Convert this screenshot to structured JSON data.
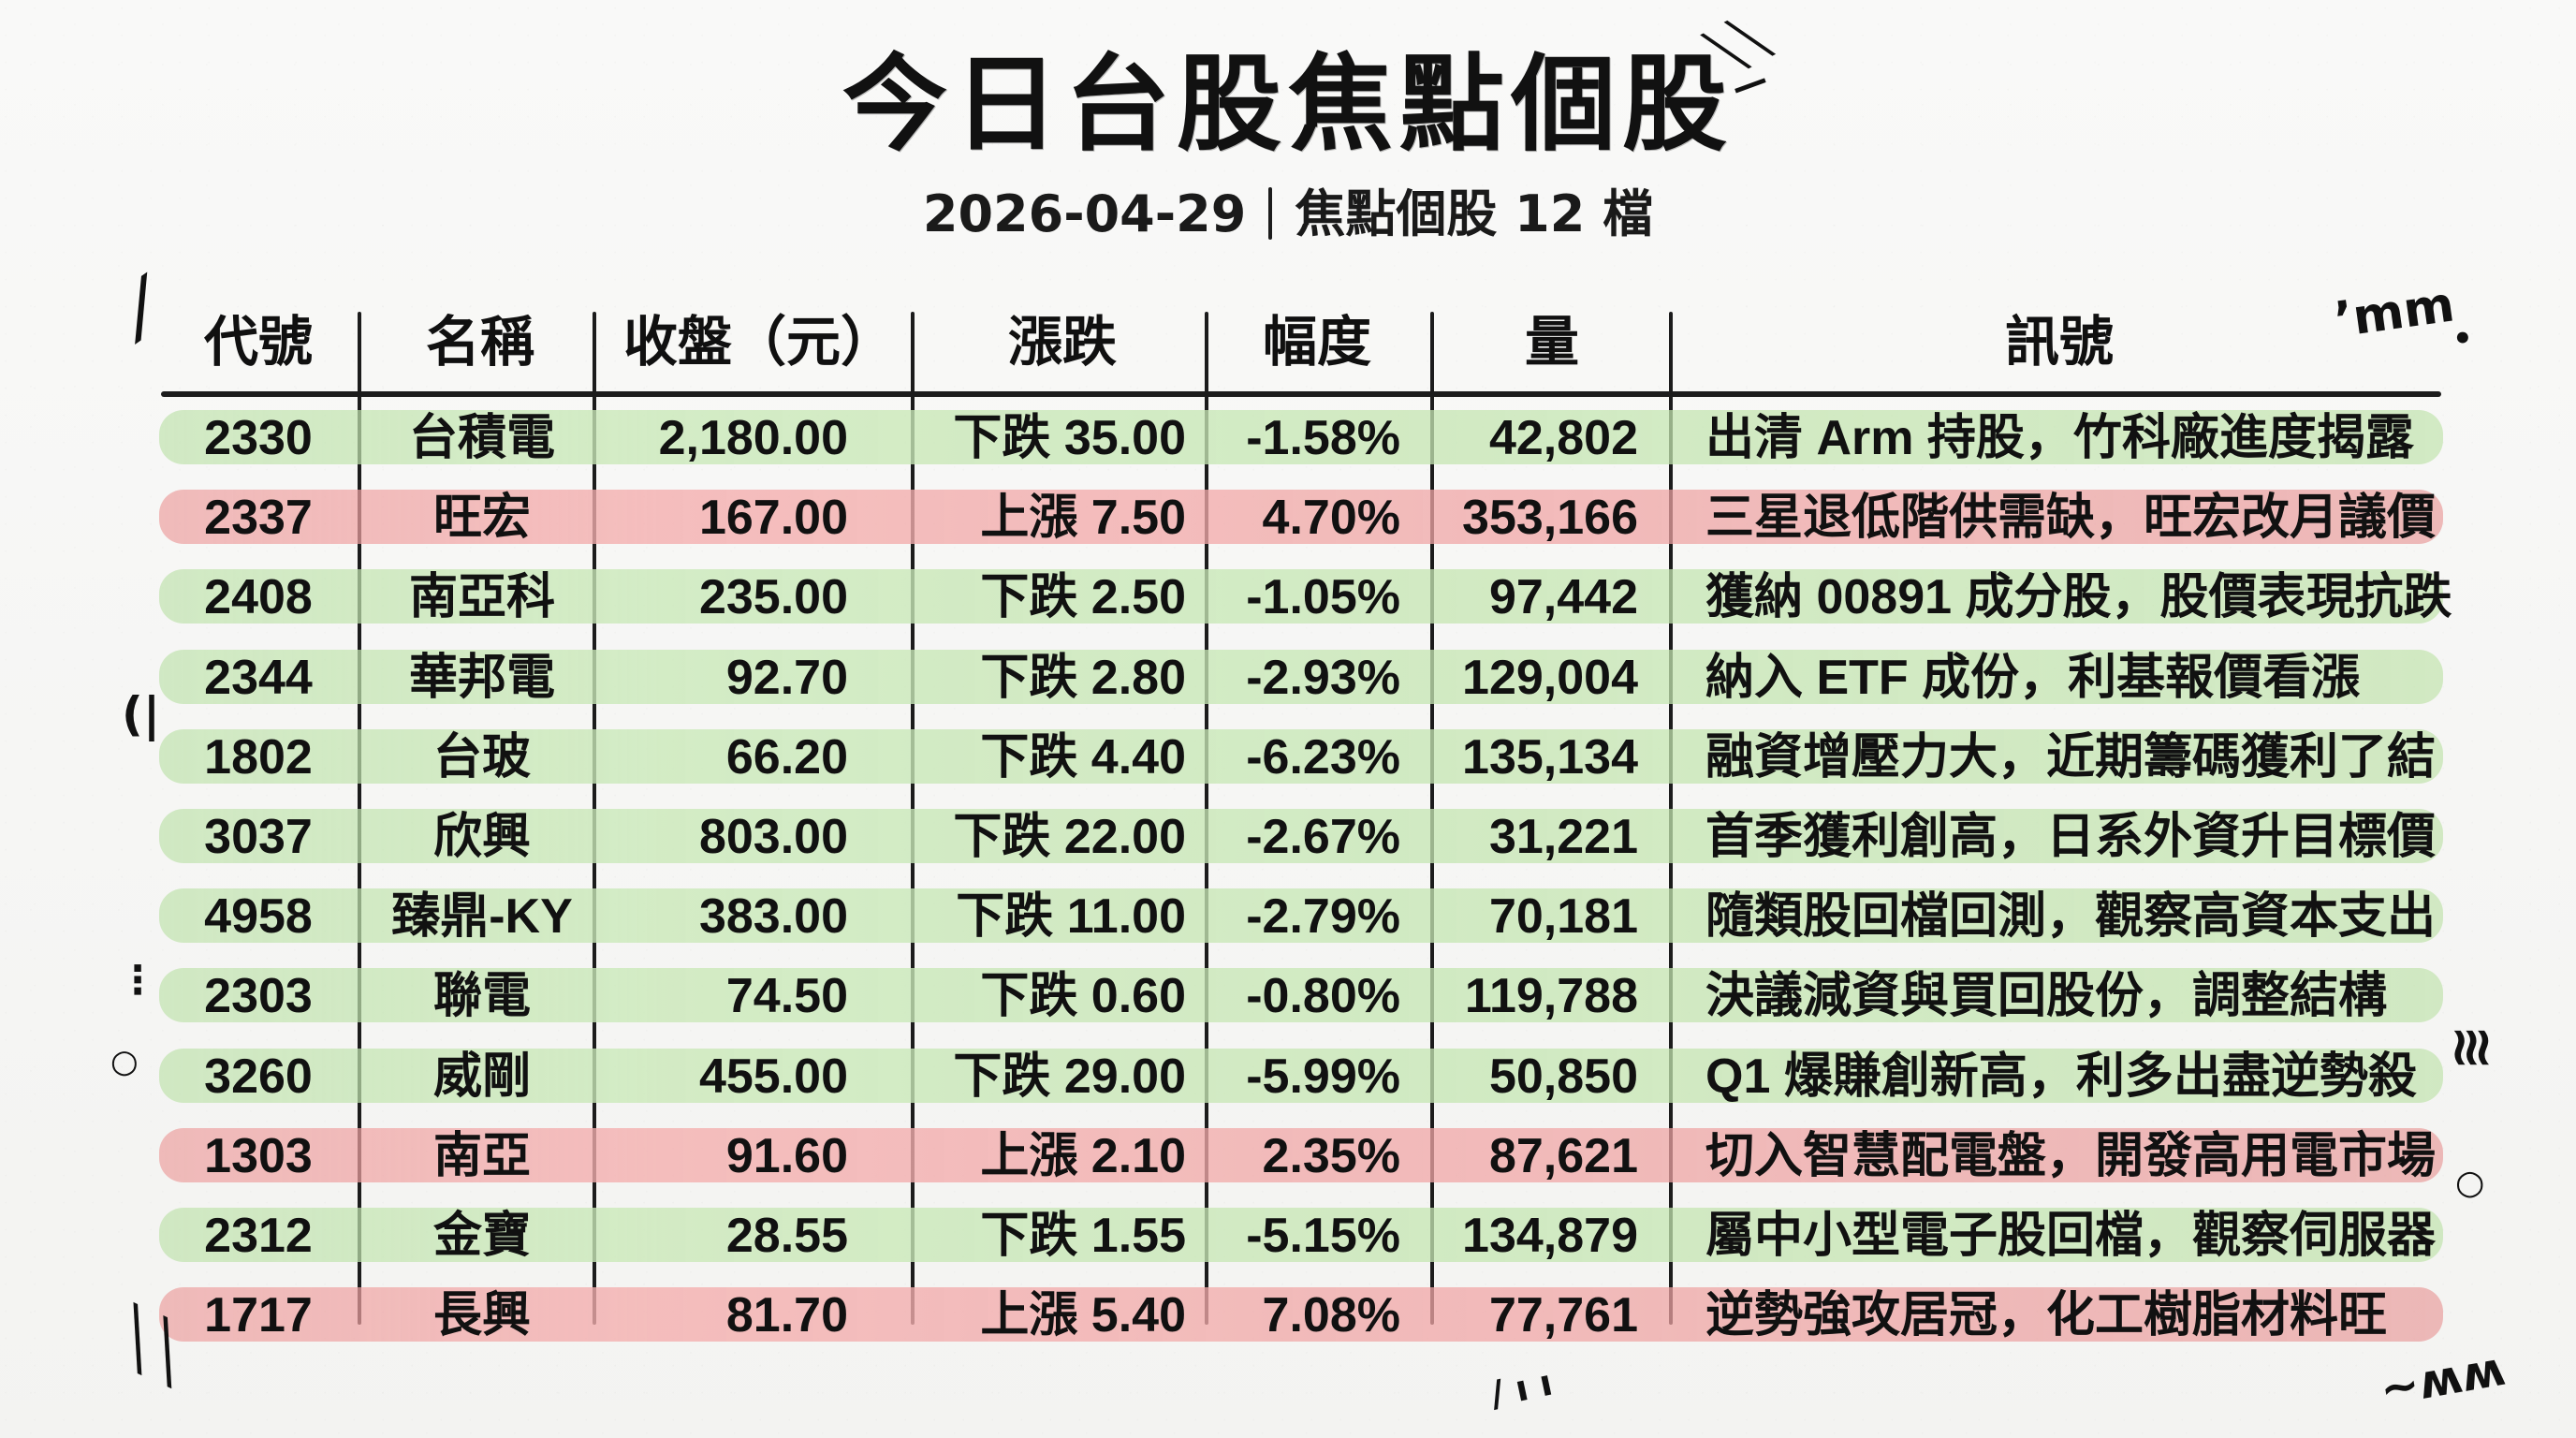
{
  "title": "今日台股焦點個股",
  "subtitle": {
    "date": "2026-04-29",
    "label": "焦點個股 12 檔"
  },
  "colors": {
    "up_band": "#f2aaaa",
    "down_band": "#c9e6b8",
    "line": "#1c1c1c"
  },
  "headers": {
    "code": "代號",
    "name": "名稱",
    "close": "收盤（元）",
    "change": "漲跌",
    "percent": "幅度",
    "volume": "量",
    "signal": "訊號"
  },
  "rows": [
    {
      "code": "2330",
      "name": "台積電",
      "close": "2,180.00",
      "change": "下跌 35.00",
      "percent": "-1.58%",
      "volume": "42,802",
      "signal": "出清 Arm 持股，竹科廠進度揭露",
      "tone": "green"
    },
    {
      "code": "2337",
      "name": "旺宏",
      "close": "167.00",
      "change": "上漲 7.50",
      "percent": "4.70%",
      "volume": "353,166",
      "signal": "三星退低階供需缺，旺宏改月議價",
      "tone": "red"
    },
    {
      "code": "2408",
      "name": "南亞科",
      "close": "235.00",
      "change": "下跌 2.50",
      "percent": "-1.05%",
      "volume": "97,442",
      "signal": "獲納 00891 成分股，股價表現抗跌",
      "tone": "green"
    },
    {
      "code": "2344",
      "name": "華邦電",
      "close": "92.70",
      "change": "下跌 2.80",
      "percent": "-2.93%",
      "volume": "129,004",
      "signal": "納入 ETF 成份，利基報價看漲",
      "tone": "green"
    },
    {
      "code": "1802",
      "name": "台玻",
      "close": "66.20",
      "change": "下跌 4.40",
      "percent": "-6.23%",
      "volume": "135,134",
      "signal": "融資增壓力大，近期籌碼獲利了結",
      "tone": "green"
    },
    {
      "code": "3037",
      "name": "欣興",
      "close": "803.00",
      "change": "下跌 22.00",
      "percent": "-2.67%",
      "volume": "31,221",
      "signal": "首季獲利創高，日系外資升目標價",
      "tone": "green"
    },
    {
      "code": "4958",
      "name": "臻鼎-KY",
      "close": "383.00",
      "change": "下跌 11.00",
      "percent": "-2.79%",
      "volume": "70,181",
      "signal": "隨類股回檔回測，觀察高資本支出",
      "tone": "green"
    },
    {
      "code": "2303",
      "name": "聯電",
      "close": "74.50",
      "change": "下跌 0.60",
      "percent": "-0.80%",
      "volume": "119,788",
      "signal": "決議減資與買回股份，調整結構",
      "tone": "green"
    },
    {
      "code": "3260",
      "name": "威剛",
      "close": "455.00",
      "change": "下跌 29.00",
      "percent": "-5.99%",
      "volume": "50,850",
      "signal": "Q1 爆賺創新高，利多出盡逆勢殺",
      "tone": "green"
    },
    {
      "code": "1303",
      "name": "南亞",
      "close": "91.60",
      "change": "上漲 2.10",
      "percent": "2.35%",
      "volume": "87,621",
      "signal": "切入智慧配電盤，開發高用電市場",
      "tone": "red"
    },
    {
      "code": "2312",
      "name": "金寶",
      "close": "28.55",
      "change": "下跌 1.55",
      "percent": "-5.15%",
      "volume": "134,879",
      "signal": "屬中小型電子股回檔，觀察伺服器",
      "tone": "green"
    },
    {
      "code": "1717",
      "name": "長興",
      "close": "81.70",
      "change": "上漲 5.40",
      "percent": "7.08%",
      "volume": "77,761",
      "signal": "逆勢強攻居冠，化工樹脂材料旺",
      "tone": "red"
    }
  ]
}
